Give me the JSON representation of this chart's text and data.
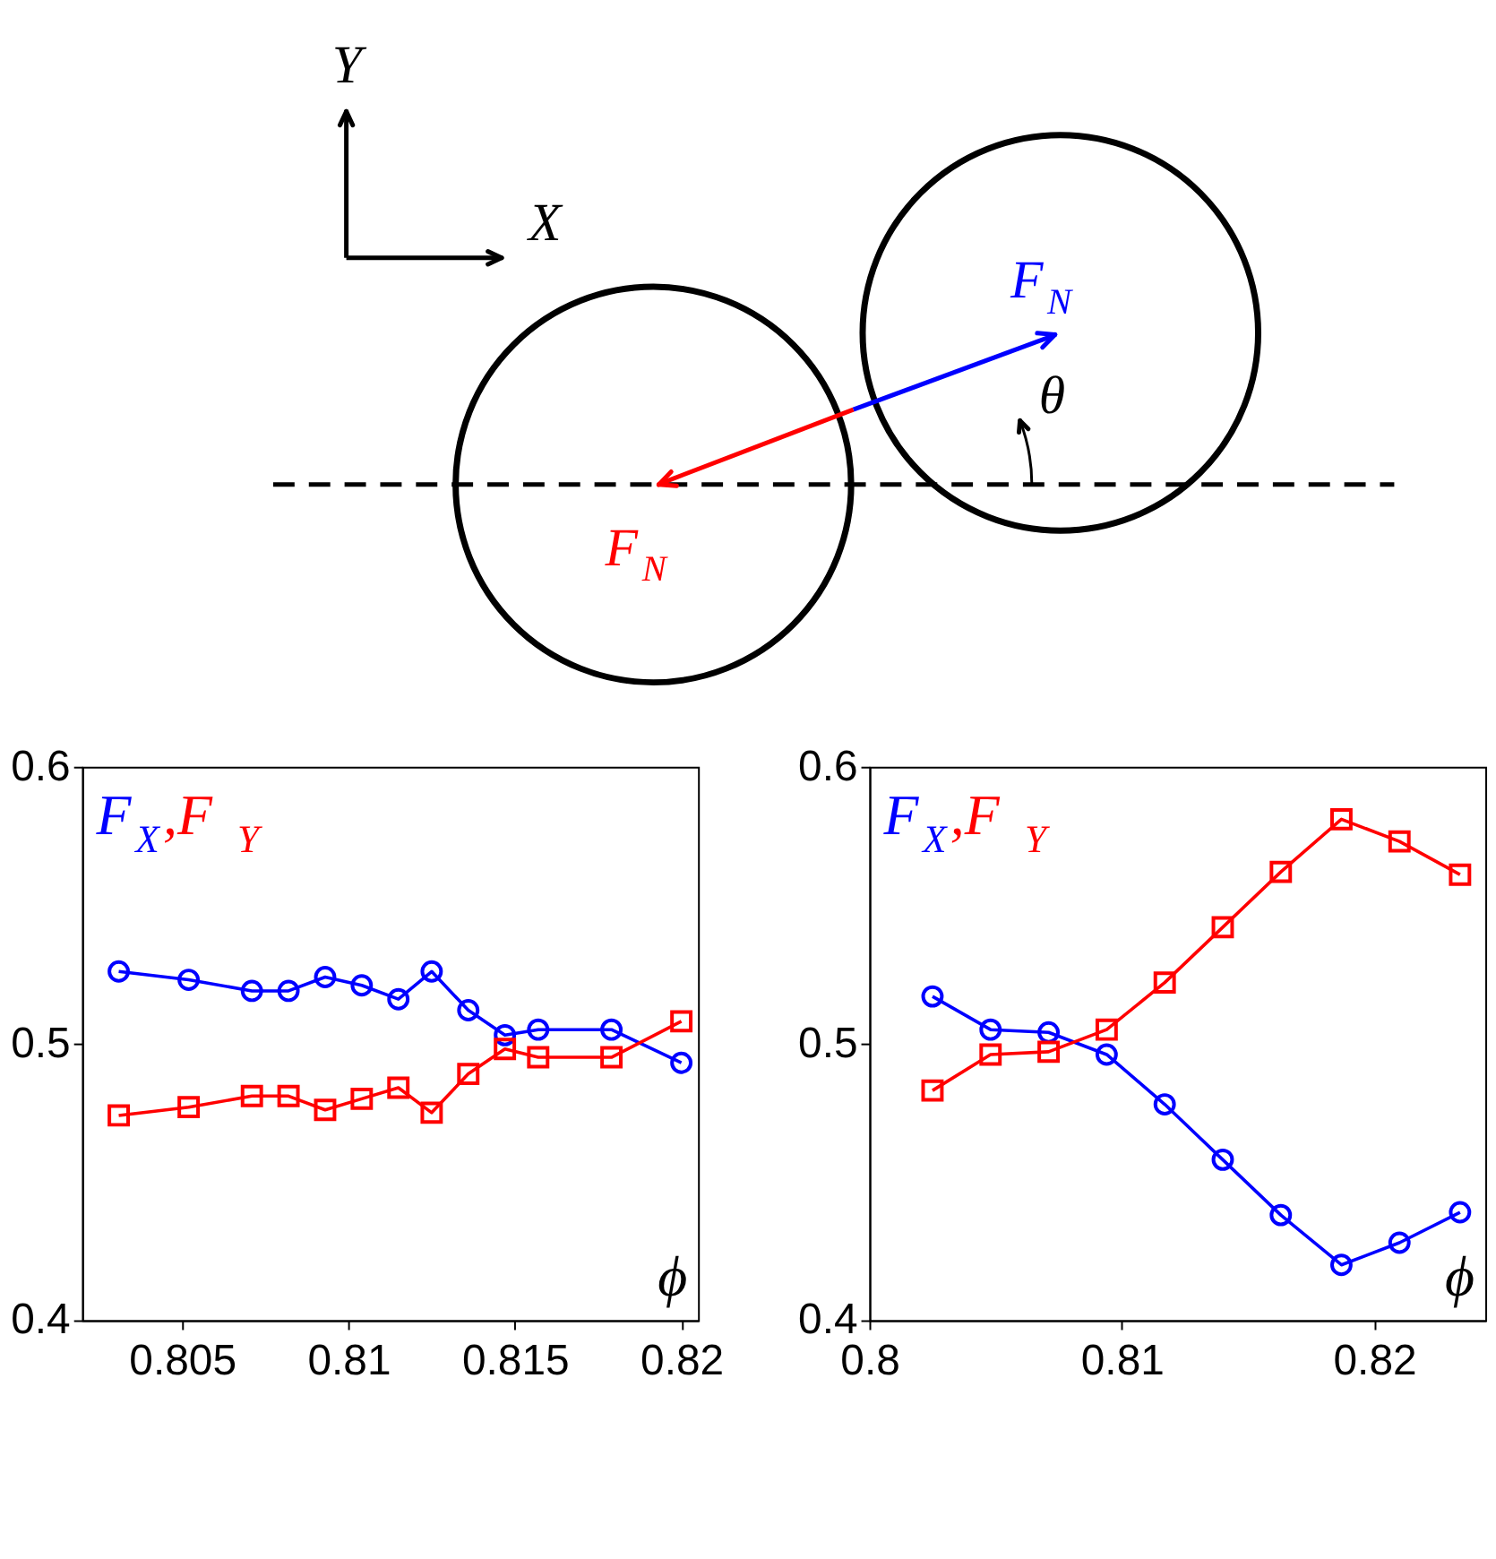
{
  "chart_data": [
    {
      "type": "other",
      "annotations": [
        "Y",
        "X",
        "F$_{N}$",
        "θ",
        "F$_{N}$"
      ]
    },
    {
      "type": "line",
      "xlabel": "ϕ",
      "legend": "top left",
      "grid": false,
      "xlim": [
        0.802,
        0.8205
      ],
      "xticks": [
        0.805,
        0.81,
        0.815,
        0.82
      ],
      "ylim": [
        0.4,
        0.6
      ],
      "yticks": [
        0.4,
        0.5,
        0.6
      ],
      "line_style": "solid",
      "series": [
        {
          "name": "F$_{X}$",
          "color": "#0000ff",
          "marker": "circle",
          "x": [
            0.8031,
            0.8052,
            0.8071,
            0.8082,
            0.8093,
            0.8104,
            0.8115,
            0.8125,
            0.8136,
            0.8147,
            0.8157,
            0.8179,
            0.82
          ],
          "values": [
            0.526,
            0.523,
            0.519,
            0.519,
            0.524,
            0.521,
            0.516,
            0.526,
            0.512,
            0.503,
            0.505,
            0.505,
            0.493
          ]
        },
        {
          "name": ",F$_{Y}$",
          "color": "#ff0000",
          "marker": "square",
          "x": [
            0.8031,
            0.8052,
            0.8071,
            0.8082,
            0.8093,
            0.8104,
            0.8115,
            0.8125,
            0.8136,
            0.8147,
            0.8157,
            0.8179,
            0.82
          ],
          "values": [
            0.474,
            0.477,
            0.481,
            0.481,
            0.476,
            0.48,
            0.484,
            0.475,
            0.489,
            0.498,
            0.495,
            0.495,
            0.508
          ]
        }
      ]
    },
    {
      "type": "line",
      "xlabel": "ϕ",
      "legend": "top left",
      "grid": false,
      "xlim": [
        0.8,
        0.8244
      ],
      "xticks": [
        0.8,
        0.81,
        0.82
      ],
      "ylim": [
        0.4,
        0.6
      ],
      "yticks": [
        0.4,
        0.5,
        0.6
      ],
      "line_style": "solid",
      "series": [
        {
          "name": "F$_{X}$",
          "color": "#0000ff",
          "marker": "circle",
          "x": [
            0.8025,
            0.8048,
            0.8071,
            0.8094,
            0.8117,
            0.814,
            0.8163,
            0.8187,
            0.821,
            0.8234
          ],
          "values": [
            0.517,
            0.505,
            0.504,
            0.496,
            0.478,
            0.458,
            0.438,
            0.42,
            0.428,
            0.439
          ]
        },
        {
          "name": ",F$_{Y}$",
          "color": "#ff0000",
          "marker": "square",
          "x": [
            0.8025,
            0.8048,
            0.8071,
            0.8094,
            0.8117,
            0.814,
            0.8163,
            0.8187,
            0.821,
            0.8234
          ],
          "values": [
            0.483,
            0.496,
            0.497,
            0.505,
            0.522,
            0.542,
            0.562,
            0.581,
            0.573,
            0.561
          ]
        }
      ]
    }
  ]
}
